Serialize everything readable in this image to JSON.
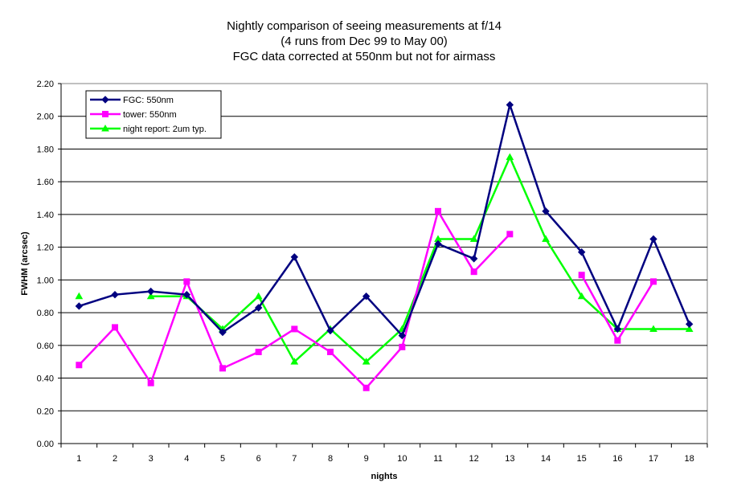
{
  "chart_data": {
    "type": "line",
    "title": [
      "Nightly comparison of seeing measurements at f/14",
      "(4 runs from Dec 99 to May 00)",
      "FGC data corrected at 550nm but not for airmass"
    ],
    "xlabel": "nights",
    "ylabel": "FWHM (arcsec)",
    "categories": [
      "1",
      "2",
      "3",
      "4",
      "5",
      "6",
      "7",
      "8",
      "9",
      "10",
      "11",
      "12",
      "13",
      "14",
      "15",
      "16",
      "17",
      "18"
    ],
    "ylim": [
      0,
      2.2
    ],
    "yticks": [
      "0.00",
      "0.20",
      "0.40",
      "0.60",
      "0.80",
      "1.00",
      "1.20",
      "1.40",
      "1.60",
      "1.80",
      "2.00",
      "2.20"
    ],
    "grid": true,
    "legend_position": "top-left",
    "series": [
      {
        "name": "FGC: 550nm",
        "color": "#000080",
        "marker": "diamond",
        "values": [
          0.84,
          0.91,
          0.93,
          0.91,
          0.68,
          0.83,
          1.14,
          0.69,
          0.9,
          0.66,
          1.22,
          1.13,
          2.07,
          1.42,
          1.17,
          0.7,
          1.25,
          0.73
        ]
      },
      {
        "name": "tower: 550nm",
        "color": "#ff00ff",
        "marker": "square",
        "values": [
          0.48,
          0.71,
          0.37,
          0.99,
          0.46,
          0.56,
          0.7,
          0.56,
          0.34,
          0.59,
          1.42,
          1.05,
          1.28,
          null,
          1.03,
          0.63,
          0.99,
          null
        ]
      },
      {
        "name": "night report: 2um typ.",
        "color": "#00ff00",
        "marker": "triangle",
        "values": [
          0.9,
          null,
          0.9,
          0.9,
          0.7,
          0.9,
          0.5,
          0.7,
          0.5,
          0.7,
          1.25,
          1.25,
          1.75,
          1.25,
          0.9,
          0.7,
          0.7,
          0.7
        ]
      }
    ]
  }
}
